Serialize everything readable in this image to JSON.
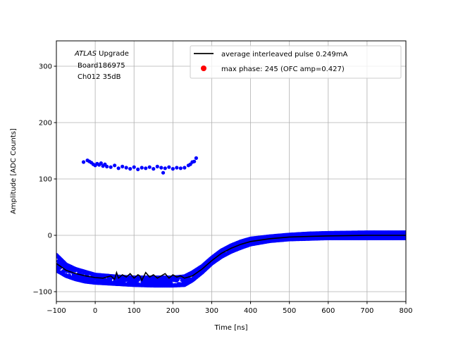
{
  "chart_data": {
    "type": "scatter",
    "xlabel": "Time [ns]",
    "ylabel": "Amplitude [ADC Counts]",
    "xlim": [
      -100,
      800
    ],
    "ylim": [
      -117.5,
      345
    ],
    "xticks": [
      -100,
      0,
      100,
      200,
      300,
      400,
      500,
      600,
      700,
      800
    ],
    "yticks": [
      -100,
      0,
      100,
      200,
      300
    ],
    "grid": true,
    "legend_position": "top-right",
    "annotation": {
      "italic": "ATLAS",
      "rest": " Upgrade",
      "line2": "Board186975",
      "line3": "Ch012 35dB"
    },
    "series": [
      {
        "name": "average interleaved pulse 0.249mA",
        "kind": "line",
        "color": "#000000",
        "x": [
          -100,
          -75,
          -50,
          -25,
          0,
          20,
          40,
          50,
          55,
          60,
          70,
          80,
          90,
          100,
          110,
          115,
          120,
          130,
          140,
          150,
          160,
          170,
          180,
          190,
          200,
          210,
          220,
          230,
          250,
          275,
          300,
          325,
          350,
          375,
          400,
          450,
          500,
          550,
          600,
          700,
          800
        ],
        "y": [
          -50,
          -62,
          -68,
          -72,
          -75,
          -76,
          -72,
          -78,
          -66,
          -76,
          -70,
          -74,
          -68,
          -76,
          -70,
          -72,
          -80,
          -66,
          -74,
          -70,
          -76,
          -72,
          -68,
          -76,
          -70,
          -74,
          -72,
          -76,
          -72,
          -60,
          -45,
          -32,
          -23,
          -16,
          -11,
          -6,
          -3,
          -2,
          -1,
          0,
          0
        ]
      },
      {
        "name": "max phase: 245 (OFC amp=0.427)",
        "kind": "point",
        "color": "#ff0000",
        "x": [],
        "y": []
      },
      {
        "kind": "scatter-band",
        "color": "#0000ff",
        "x": [
          -100,
          -75,
          -50,
          -25,
          0,
          50,
          100,
          150,
          200,
          230,
          250,
          275,
          300,
          325,
          350,
          375,
          400,
          450,
          500,
          550,
          600,
          700,
          800
        ],
        "lower": [
          -62,
          -72,
          -78,
          -82,
          -84,
          -86,
          -88,
          -89,
          -89,
          -88,
          -80,
          -66,
          -50,
          -38,
          -29,
          -22,
          -16,
          -10,
          -7,
          -6,
          -5,
          -5,
          -5
        ],
        "upper": [
          -35,
          -52,
          -60,
          -65,
          -70,
          -73,
          -75,
          -75,
          -75,
          -73,
          -66,
          -55,
          -40,
          -27,
          -18,
          -11,
          -6,
          -2,
          1,
          3,
          4,
          5,
          5
        ]
      },
      {
        "kind": "scatter",
        "color": "#0000ff",
        "x": [
          -30,
          -20,
          -15,
          -10,
          -5,
          0,
          5,
          10,
          15,
          20,
          25,
          30,
          40,
          50,
          60,
          70,
          80,
          90,
          100,
          110,
          120,
          130,
          140,
          150,
          160,
          170,
          175,
          180,
          190,
          200,
          210,
          220,
          230,
          240,
          245,
          250,
          255,
          260
        ],
        "y": [
          130,
          133,
          131,
          129,
          126,
          124,
          127,
          125,
          128,
          123,
          126,
          122,
          121,
          124,
          119,
          122,
          120,
          118,
          121,
          117,
          120,
          119,
          121,
          118,
          122,
          120,
          111,
          119,
          121,
          118,
          120,
          119,
          120,
          124,
          126,
          130,
          131,
          137
        ]
      }
    ]
  }
}
